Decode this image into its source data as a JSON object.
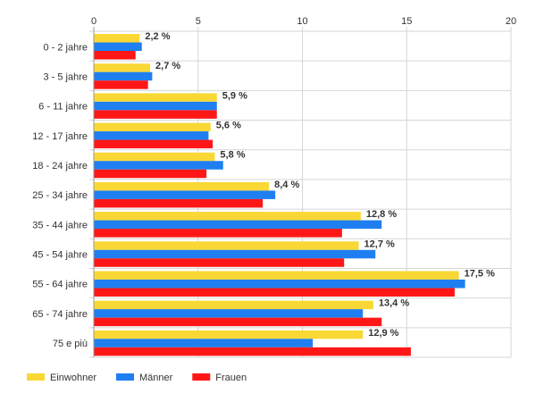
{
  "chart_data": {
    "type": "bar",
    "orientation": "horizontal",
    "categories": [
      "0 - 2 jahre",
      "3 - 5 jahre",
      "6 - 11 jahre",
      "12 - 17 jahre",
      "18 - 24 jahre",
      "25 - 34 jahre",
      "35 - 44 jahre",
      "45 - 54 jahre",
      "55 - 64 jahre",
      "65 - 74 jahre",
      "75 e più"
    ],
    "series": [
      {
        "name": "Einwohner",
        "color": "#f9d835",
        "values": [
          2.2,
          2.7,
          5.9,
          5.6,
          5.8,
          8.4,
          12.8,
          12.7,
          17.5,
          13.4,
          12.9
        ]
      },
      {
        "name": "Männer",
        "color": "#1f7ff0",
        "values": [
          2.3,
          2.8,
          5.9,
          5.5,
          6.2,
          8.7,
          13.8,
          13.5,
          17.8,
          12.9,
          10.5
        ]
      },
      {
        "name": "Frauen",
        "color": "#ff1717",
        "values": [
          2.0,
          2.6,
          5.9,
          5.7,
          5.4,
          8.1,
          11.9,
          12.0,
          17.3,
          13.8,
          15.2
        ]
      }
    ],
    "data_labels": [
      "2,2 %",
      "2,7 %",
      "5,9 %",
      "5,6 %",
      "5,8 %",
      "8,4 %",
      "12,8 %",
      "12,7 %",
      "17,5 %",
      "13,4 %",
      "12,9 %"
    ],
    "x_ticks": [
      "0",
      "5",
      "10",
      "15",
      "20"
    ],
    "xlim": [
      0,
      20
    ],
    "xaxis_position": "top",
    "grid": true,
    "legend_position": "bottom-left",
    "title": "",
    "xlabel": "",
    "ylabel": ""
  }
}
